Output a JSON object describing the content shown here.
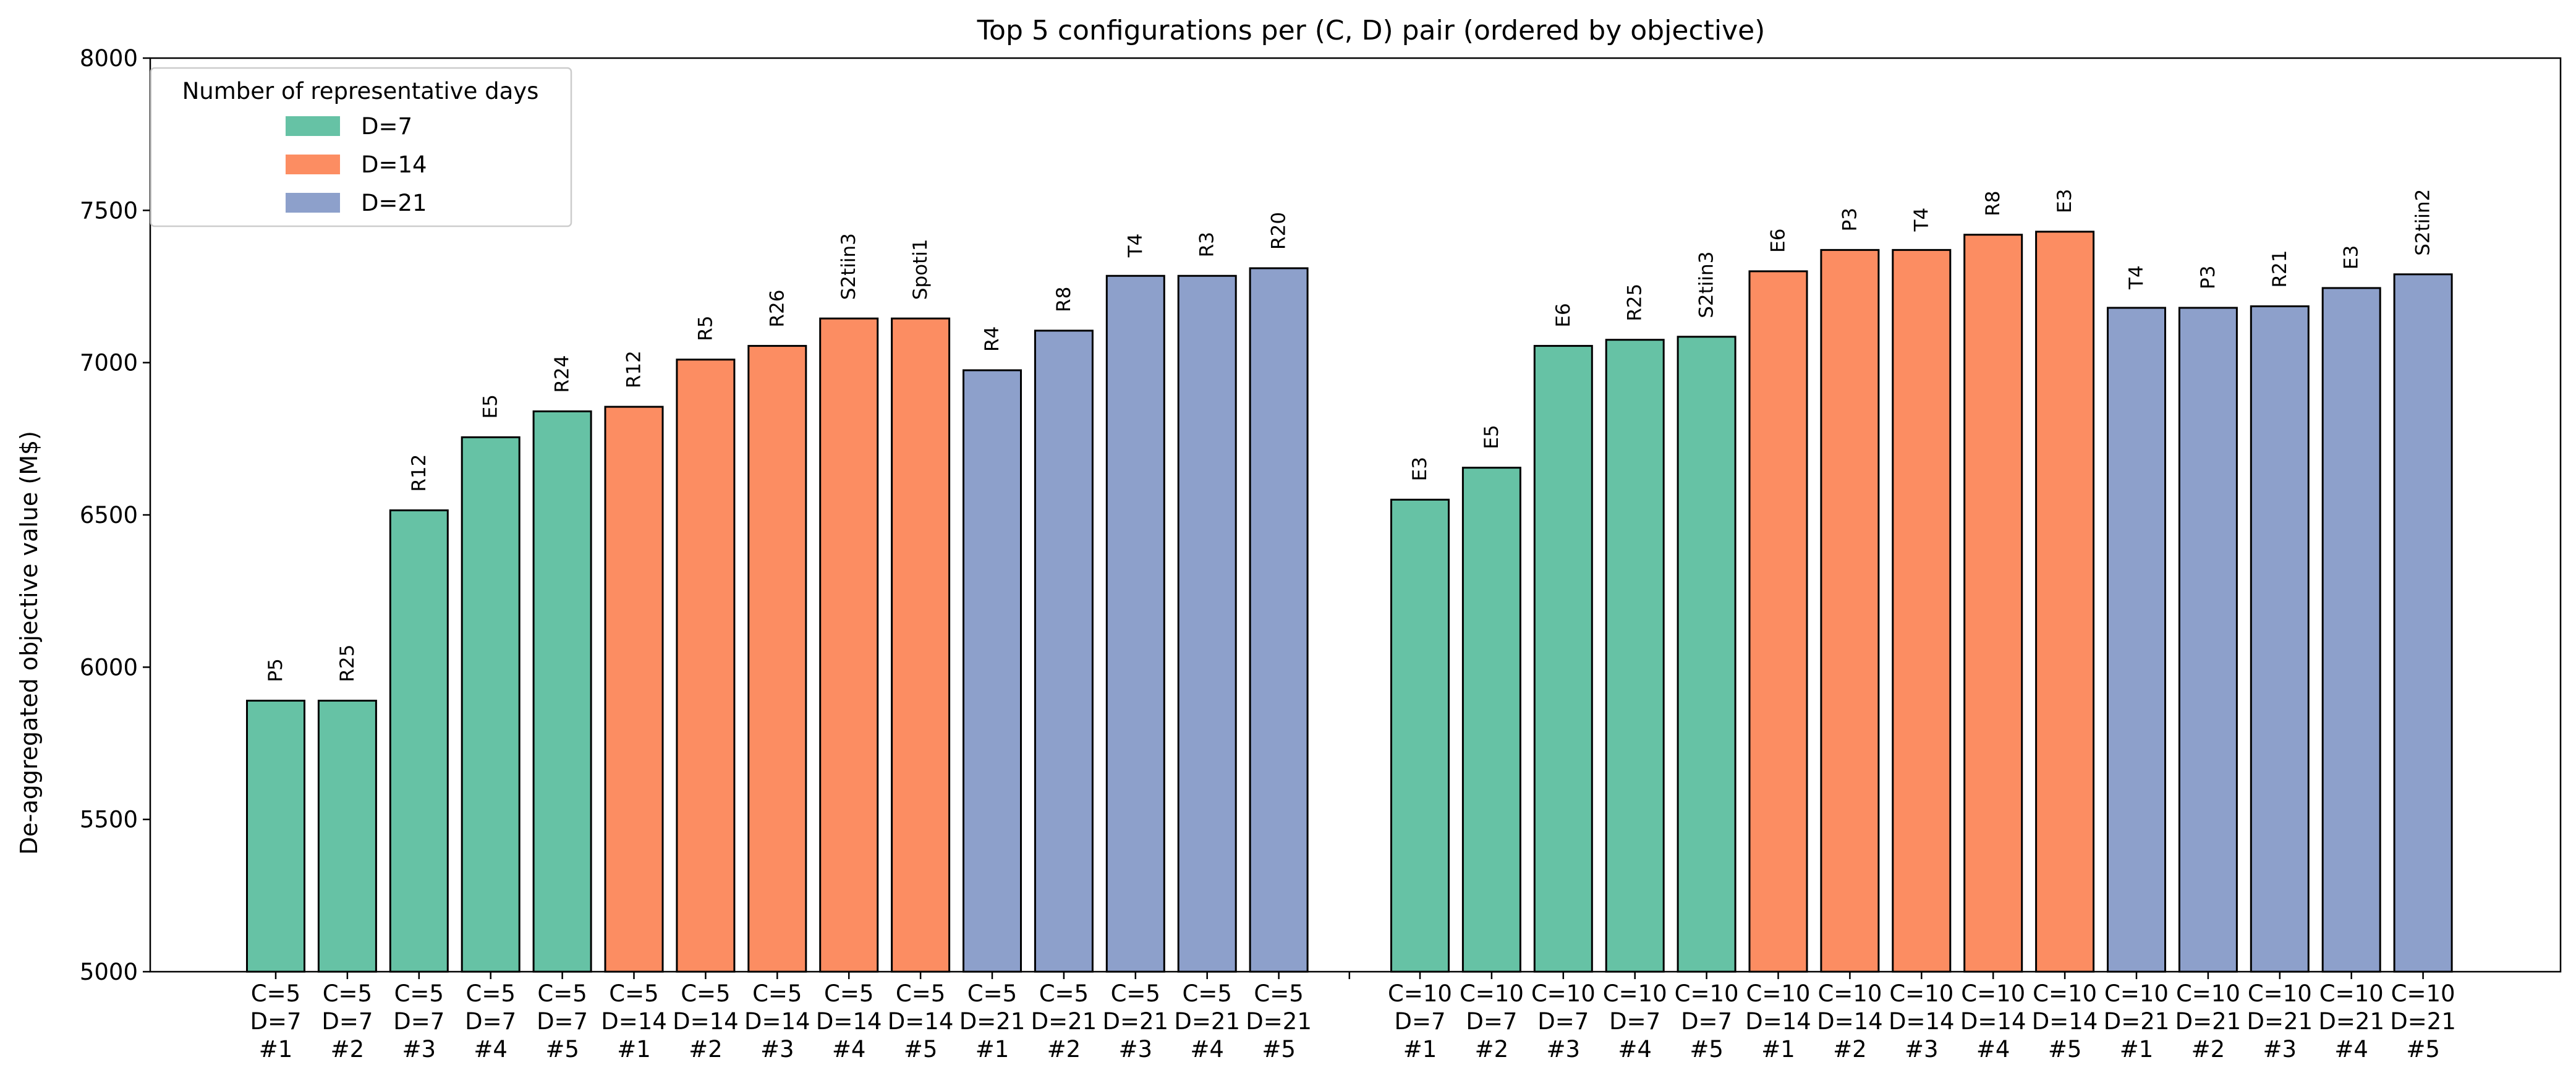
{
  "chart_data": {
    "type": "bar",
    "title": "Top 5 configurations per (C, D) pair (ordered by objective)",
    "xlabel": "",
    "ylabel": "De-aggregated objective value (M$)",
    "ylim": [
      5000,
      8000
    ],
    "yticks": [
      5000,
      5500,
      6000,
      6500,
      7000,
      7500,
      8000
    ],
    "grid": false,
    "legend": {
      "title": "Number of representative days",
      "placement": "top-left",
      "entries": [
        {
          "label": "D=7",
          "color": "#66c2a5"
        },
        {
          "label": "D=14",
          "color": "#fc8d62"
        },
        {
          "label": "D=21",
          "color": "#8da0cb"
        }
      ]
    },
    "groups": [
      {
        "C": 5,
        "bars": [
          {
            "tick": [
              "C=5",
              "D=7",
              "#1"
            ],
            "D": 7,
            "value": 5890,
            "label": "P5"
          },
          {
            "tick": [
              "C=5",
              "D=7",
              "#2"
            ],
            "D": 7,
            "value": 5890,
            "label": "R25"
          },
          {
            "tick": [
              "C=5",
              "D=7",
              "#3"
            ],
            "D": 7,
            "value": 6515,
            "label": "R12"
          },
          {
            "tick": [
              "C=5",
              "D=7",
              "#4"
            ],
            "D": 7,
            "value": 6755,
            "label": "E5"
          },
          {
            "tick": [
              "C=5",
              "D=7",
              "#5"
            ],
            "D": 7,
            "value": 6840,
            "label": "R24"
          },
          {
            "tick": [
              "C=5",
              "D=14",
              "#1"
            ],
            "D": 14,
            "value": 6855,
            "label": "R12"
          },
          {
            "tick": [
              "C=5",
              "D=14",
              "#2"
            ],
            "D": 14,
            "value": 7010,
            "label": "R5"
          },
          {
            "tick": [
              "C=5",
              "D=14",
              "#3"
            ],
            "D": 14,
            "value": 7055,
            "label": "R26"
          },
          {
            "tick": [
              "C=5",
              "D=14",
              "#4"
            ],
            "D": 14,
            "value": 7145,
            "label": "S2tiin3"
          },
          {
            "tick": [
              "C=5",
              "D=14",
              "#5"
            ],
            "D": 14,
            "value": 7145,
            "label": "Spoti1"
          },
          {
            "tick": [
              "C=5",
              "D=21",
              "#1"
            ],
            "D": 21,
            "value": 6975,
            "label": "R4"
          },
          {
            "tick": [
              "C=5",
              "D=21",
              "#2"
            ],
            "D": 21,
            "value": 7105,
            "label": "R8"
          },
          {
            "tick": [
              "C=5",
              "D=21",
              "#3"
            ],
            "D": 21,
            "value": 7285,
            "label": "T4"
          },
          {
            "tick": [
              "C=5",
              "D=21",
              "#4"
            ],
            "D": 21,
            "value": 7285,
            "label": "R3"
          },
          {
            "tick": [
              "C=5",
              "D=21",
              "#5"
            ],
            "D": 21,
            "value": 7310,
            "label": "R20"
          }
        ]
      },
      {
        "C": 10,
        "bars": [
          {
            "tick": [
              "C=10",
              "D=7",
              "#1"
            ],
            "D": 7,
            "value": 6550,
            "label": "E3"
          },
          {
            "tick": [
              "C=10",
              "D=7",
              "#2"
            ],
            "D": 7,
            "value": 6655,
            "label": "E5"
          },
          {
            "tick": [
              "C=10",
              "D=7",
              "#3"
            ],
            "D": 7,
            "value": 7055,
            "label": "E6"
          },
          {
            "tick": [
              "C=10",
              "D=7",
              "#4"
            ],
            "D": 7,
            "value": 7075,
            "label": "R25"
          },
          {
            "tick": [
              "C=10",
              "D=7",
              "#5"
            ],
            "D": 7,
            "value": 7085,
            "label": "S2tiin3"
          },
          {
            "tick": [
              "C=10",
              "D=14",
              "#1"
            ],
            "D": 14,
            "value": 7300,
            "label": "E6"
          },
          {
            "tick": [
              "C=10",
              "D=14",
              "#2"
            ],
            "D": 14,
            "value": 7370,
            "label": "P3"
          },
          {
            "tick": [
              "C=10",
              "D=14",
              "#3"
            ],
            "D": 14,
            "value": 7370,
            "label": "T4"
          },
          {
            "tick": [
              "C=10",
              "D=14",
              "#4"
            ],
            "D": 14,
            "value": 7420,
            "label": "R8"
          },
          {
            "tick": [
              "C=10",
              "D=14",
              "#5"
            ],
            "D": 14,
            "value": 7430,
            "label": "E3"
          },
          {
            "tick": [
              "C=10",
              "D=21",
              "#1"
            ],
            "D": 21,
            "value": 7180,
            "label": "T4"
          },
          {
            "tick": [
              "C=10",
              "D=21",
              "#2"
            ],
            "D": 21,
            "value": 7180,
            "label": "P3"
          },
          {
            "tick": [
              "C=10",
              "D=21",
              "#3"
            ],
            "D": 21,
            "value": 7185,
            "label": "R21"
          },
          {
            "tick": [
              "C=10",
              "D=21",
              "#4"
            ],
            "D": 21,
            "value": 7245,
            "label": "E3"
          },
          {
            "tick": [
              "C=10",
              "D=21",
              "#5"
            ],
            "D": 21,
            "value": 7290,
            "label": "S2tiin2"
          }
        ]
      }
    ]
  }
}
